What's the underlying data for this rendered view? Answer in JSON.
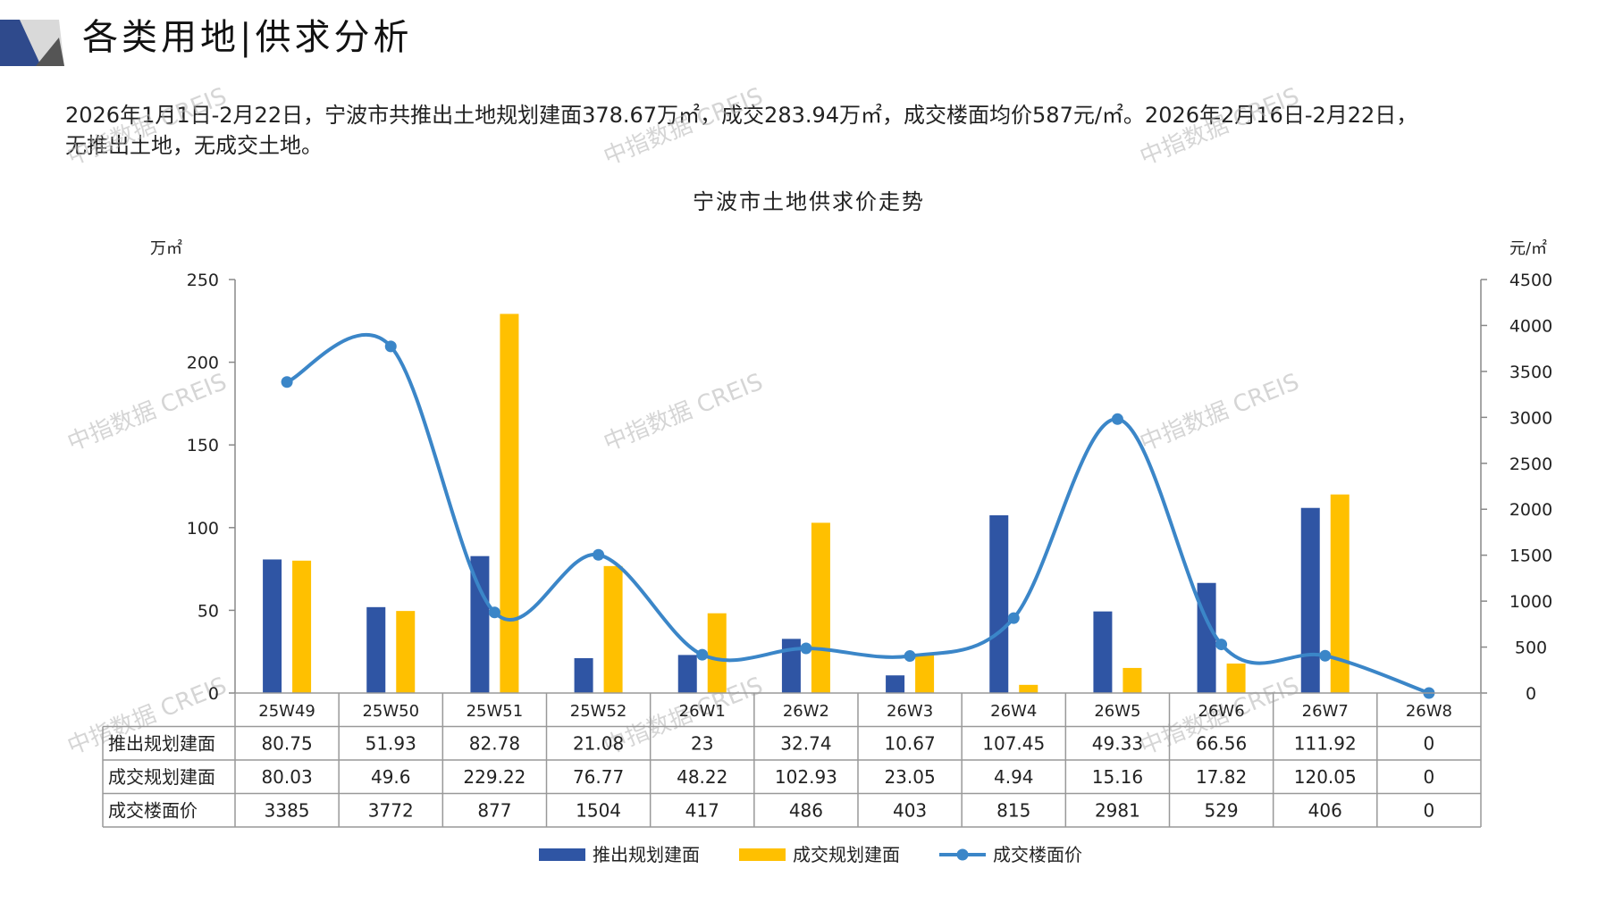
{
  "header": {
    "title": "各类用地|供求分析",
    "summary_line1": "2026年1月1日-2月22日，宁波市共推出土地规划建面378.67万㎡，成交283.94万㎡，成交楼面均价587元/㎡。2026年2月16日-2月22日，",
    "summary_line2": "无推出土地，无成交土地。"
  },
  "watermark_text": "中指数据 CREIS",
  "colors": {
    "supply_bar": "#2F55A4",
    "deal_bar": "#FFC000",
    "price_line": "#3B86C8",
    "axis": "#888888",
    "grid_border": "#999999",
    "header_dark": "#2F4A8C",
    "header_gray": "#BFBFBF"
  },
  "chart_data": {
    "type": "bar",
    "title": "宁波市土地供求价走势",
    "y_left_unit": "万㎡",
    "y_right_unit": "元/㎡",
    "y_left_ticks": [
      0,
      50,
      100,
      150,
      200,
      250
    ],
    "y_right_ticks": [
      0,
      500,
      1000,
      1500,
      2000,
      2500,
      3000,
      3500,
      4000,
      4500
    ],
    "ylim_left": [
      0,
      250
    ],
    "ylim_right": [
      0,
      4500
    ],
    "categories": [
      "25W49",
      "25W50",
      "25W51",
      "25W52",
      "26W1",
      "26W2",
      "26W3",
      "26W4",
      "26W5",
      "26W6",
      "26W7",
      "26W8"
    ],
    "series": [
      {
        "name": "推出规划建面",
        "kind": "bar",
        "axis": "left",
        "values": [
          80.75,
          51.93,
          82.78,
          21.08,
          23,
          32.74,
          10.67,
          107.45,
          49.33,
          66.56,
          111.92,
          0
        ],
        "labels": [
          "80.75",
          "51.93",
          "82.78",
          "21.08",
          "23",
          "32.74",
          "10.67",
          "107.45",
          "49.33",
          "66.56",
          "111.92",
          "0"
        ]
      },
      {
        "name": "成交规划建面",
        "kind": "bar",
        "axis": "left",
        "values": [
          80.03,
          49.6,
          229.22,
          76.77,
          48.22,
          102.93,
          23.05,
          4.94,
          15.16,
          17.82,
          120.05,
          0
        ],
        "labels": [
          "80.03",
          "49.6",
          "229.22",
          "76.77",
          "48.22",
          "102.93",
          "23.05",
          "4.94",
          "15.16",
          "17.82",
          "120.05",
          "0"
        ]
      },
      {
        "name": "成交楼面价",
        "kind": "line",
        "axis": "right",
        "values": [
          3385,
          3772,
          877,
          1504,
          417,
          486,
          403,
          815,
          2981,
          529,
          406,
          0
        ],
        "labels": [
          "3385",
          "3772",
          "877",
          "1504",
          "417",
          "486",
          "403",
          "815",
          "2981",
          "529",
          "406",
          "0"
        ]
      }
    ],
    "table_row_labels": [
      "推出规划建面",
      "成交规划建面",
      "成交楼面价"
    ],
    "legend": [
      "推出规划建面",
      "成交规划建面",
      "成交楼面价"
    ],
    "legend_position": "bottom",
    "grid": false
  }
}
